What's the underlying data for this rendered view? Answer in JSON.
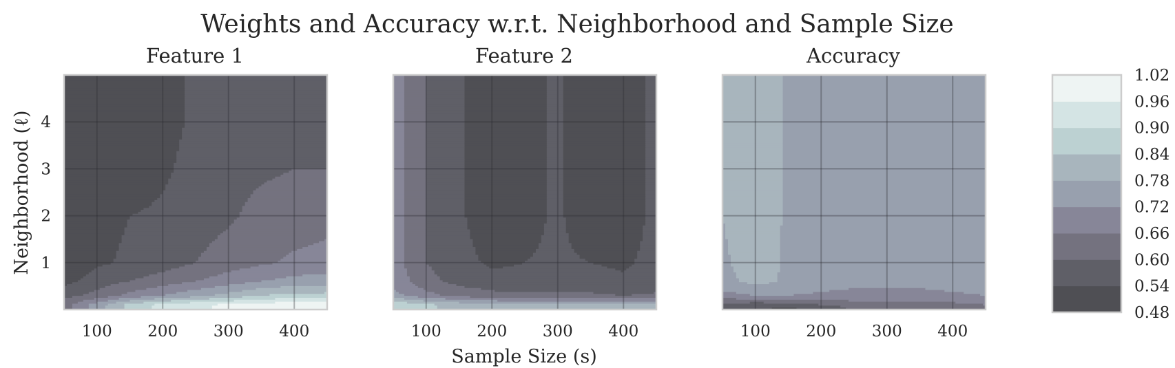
{
  "chart_data": {
    "type": "contour",
    "title": "Weights and Accuracy w.r.t. Neighborhood and Sample Size",
    "xlabel": "Sample Size (s)",
    "ylabel": "Neighborhood (ℓ)",
    "xlim": [
      50,
      450
    ],
    "ylim": [
      0,
      5
    ],
    "xticks": [
      "100",
      "200",
      "300",
      "400"
    ],
    "yticks": [
      "1",
      "2",
      "3",
      "4"
    ],
    "grid": true,
    "colorbar": {
      "levels": [
        "1.02",
        "0.96",
        "0.90",
        "0.84",
        "0.78",
        "0.72",
        "0.66",
        "0.60",
        "0.54",
        "0.48"
      ],
      "band_colors": [
        "#4f4f54",
        "#5f5f67",
        "#74727f",
        "#878698",
        "#98a0ae",
        "#a8b5bd",
        "#bcd1d2",
        "#d4e4e4",
        "#eef4f3"
      ]
    },
    "panels": [
      {
        "subtitle": "Feature 1",
        "x": [
          50,
          100,
          150,
          200,
          250,
          300,
          350,
          400,
          450
        ],
        "y": [
          0.1,
          0.3,
          0.6,
          1.0,
          2.0,
          3.0,
          4.0,
          5.0
        ],
        "z": [
          [
            0.63,
            0.75,
            0.86,
            0.92,
            0.95,
            0.97,
            0.98,
            1.01,
            1.0
          ],
          [
            0.58,
            0.62,
            0.68,
            0.72,
            0.76,
            0.8,
            0.84,
            0.86,
            0.86
          ],
          [
            0.52,
            0.57,
            0.6,
            0.63,
            0.66,
            0.69,
            0.72,
            0.74,
            0.75
          ],
          [
            0.49,
            0.53,
            0.55,
            0.57,
            0.6,
            0.63,
            0.65,
            0.67,
            0.68
          ],
          [
            0.48,
            0.52,
            0.54,
            0.55,
            0.57,
            0.59,
            0.62,
            0.63,
            0.64
          ],
          [
            0.48,
            0.52,
            0.5,
            0.53,
            0.56,
            0.58,
            0.59,
            0.6,
            0.6
          ],
          [
            0.48,
            0.52,
            0.49,
            0.52,
            0.55,
            0.57,
            0.58,
            0.59,
            0.59
          ],
          [
            0.48,
            0.52,
            0.49,
            0.52,
            0.55,
            0.57,
            0.58,
            0.59,
            0.59
          ]
        ]
      },
      {
        "subtitle": "Feature 2",
        "x": [
          50,
          100,
          150,
          200,
          250,
          300,
          350,
          400,
          450
        ],
        "y": [
          0.1,
          0.3,
          0.6,
          1.0,
          2.0,
          3.0,
          4.0,
          5.0
        ],
        "z": [
          [
            0.9,
            0.85,
            0.82,
            0.8,
            0.79,
            0.79,
            0.79,
            0.79,
            0.8
          ],
          [
            0.74,
            0.68,
            0.64,
            0.62,
            0.61,
            0.61,
            0.61,
            0.6,
            0.61
          ],
          [
            0.7,
            0.62,
            0.58,
            0.56,
            0.56,
            0.56,
            0.56,
            0.55,
            0.56
          ],
          [
            0.69,
            0.6,
            0.56,
            0.53,
            0.54,
            0.55,
            0.54,
            0.53,
            0.56
          ],
          [
            0.69,
            0.6,
            0.55,
            0.5,
            0.52,
            0.55,
            0.5,
            0.5,
            0.56
          ],
          [
            0.69,
            0.6,
            0.55,
            0.5,
            0.52,
            0.55,
            0.5,
            0.5,
            0.56
          ],
          [
            0.69,
            0.6,
            0.55,
            0.5,
            0.52,
            0.55,
            0.5,
            0.5,
            0.56
          ],
          [
            0.69,
            0.6,
            0.55,
            0.5,
            0.52,
            0.55,
            0.5,
            0.5,
            0.56
          ]
        ]
      },
      {
        "subtitle": "Accuracy",
        "x": [
          50,
          100,
          150,
          200,
          250,
          300,
          350,
          400,
          450
        ],
        "y": [
          0.05,
          0.15,
          0.3,
          0.6,
          1.0,
          2.0,
          3.0,
          4.0,
          5.0
        ],
        "z": [
          [
            0.58,
            0.55,
            0.53,
            0.57,
            0.61,
            0.63,
            0.64,
            0.64,
            0.65
          ],
          [
            0.61,
            0.6,
            0.61,
            0.63,
            0.65,
            0.66,
            0.66,
            0.66,
            0.67
          ],
          [
            0.7,
            0.72,
            0.72,
            0.71,
            0.7,
            0.69,
            0.7,
            0.71,
            0.72
          ],
          [
            0.76,
            0.8,
            0.77,
            0.75,
            0.74,
            0.74,
            0.74,
            0.75,
            0.75
          ],
          [
            0.77,
            0.81,
            0.77,
            0.75,
            0.75,
            0.75,
            0.75,
            0.75,
            0.75
          ],
          [
            0.78,
            0.82,
            0.77,
            0.76,
            0.76,
            0.76,
            0.76,
            0.76,
            0.76
          ],
          [
            0.78,
            0.82,
            0.77,
            0.76,
            0.76,
            0.76,
            0.76,
            0.76,
            0.76
          ],
          [
            0.78,
            0.82,
            0.77,
            0.76,
            0.76,
            0.76,
            0.76,
            0.76,
            0.76
          ],
          [
            0.78,
            0.82,
            0.77,
            0.76,
            0.76,
            0.76,
            0.76,
            0.76,
            0.76
          ]
        ]
      }
    ]
  }
}
